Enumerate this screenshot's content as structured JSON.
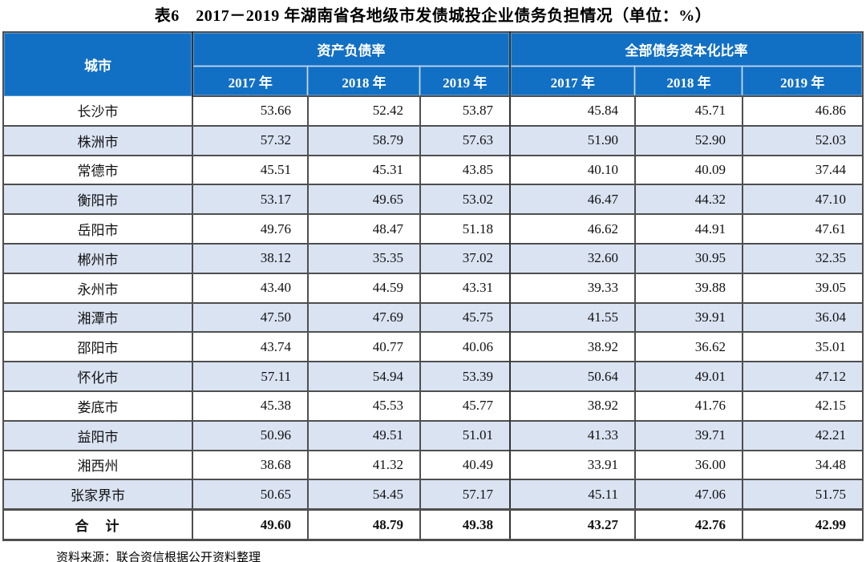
{
  "page": {
    "title": "表6　2017－2019 年湖南省各地级市发债城投企业债务负担情况（单位：%）",
    "source_note": "资料来源：联合资信根据公开资料整理"
  },
  "colors": {
    "header_blue": "#1270c4",
    "header_text": "#ffffff",
    "row_alt": "#dae3f2",
    "grid_line": "#4f4f4f",
    "body_text": "#111111"
  },
  "table": {
    "city_header": "城市",
    "group_headers": [
      "资产负债率",
      "全部债务资本化比率"
    ],
    "years": [
      "2017 年",
      "2018 年",
      "2019 年"
    ],
    "rows": [
      {
        "city": "长沙市",
        "values": [
          "53.66",
          "52.42",
          "53.87",
          "45.84",
          "45.71",
          "46.86"
        ]
      },
      {
        "city": "株洲市",
        "values": [
          "57.32",
          "58.79",
          "57.63",
          "51.90",
          "52.90",
          "52.03"
        ]
      },
      {
        "city": "常德市",
        "values": [
          "45.51",
          "45.31",
          "43.85",
          "40.10",
          "40.09",
          "37.44"
        ]
      },
      {
        "city": "衡阳市",
        "values": [
          "53.17",
          "49.65",
          "53.02",
          "46.47",
          "44.32",
          "47.10"
        ]
      },
      {
        "city": "岳阳市",
        "values": [
          "49.76",
          "48.47",
          "51.18",
          "46.62",
          "44.91",
          "47.61"
        ]
      },
      {
        "city": "郴州市",
        "values": [
          "38.12",
          "35.35",
          "37.02",
          "32.60",
          "30.95",
          "32.35"
        ]
      },
      {
        "city": "永州市",
        "values": [
          "43.40",
          "44.59",
          "43.31",
          "39.33",
          "39.88",
          "39.05"
        ]
      },
      {
        "city": "湘潭市",
        "values": [
          "47.50",
          "47.69",
          "45.75",
          "41.55",
          "39.91",
          "36.04"
        ]
      },
      {
        "city": "邵阳市",
        "values": [
          "43.74",
          "40.77",
          "40.06",
          "38.92",
          "36.62",
          "35.01"
        ]
      },
      {
        "city": "怀化市",
        "values": [
          "57.11",
          "54.94",
          "53.39",
          "50.64",
          "49.01",
          "47.12"
        ]
      },
      {
        "city": "娄底市",
        "values": [
          "45.38",
          "45.53",
          "45.77",
          "38.92",
          "41.76",
          "42.15"
        ]
      },
      {
        "city": "益阳市",
        "values": [
          "50.96",
          "49.51",
          "51.01",
          "41.33",
          "39.71",
          "42.21"
        ]
      },
      {
        "city": "湘西州",
        "values": [
          "38.68",
          "41.32",
          "40.49",
          "33.91",
          "36.00",
          "34.48"
        ]
      },
      {
        "city": "张家界市",
        "values": [
          "50.65",
          "54.45",
          "57.17",
          "45.11",
          "47.06",
          "51.75"
        ]
      }
    ],
    "total": {
      "label": "合　计",
      "values": [
        "49.60",
        "48.79",
        "49.38",
        "43.27",
        "42.76",
        "42.99"
      ]
    }
  }
}
